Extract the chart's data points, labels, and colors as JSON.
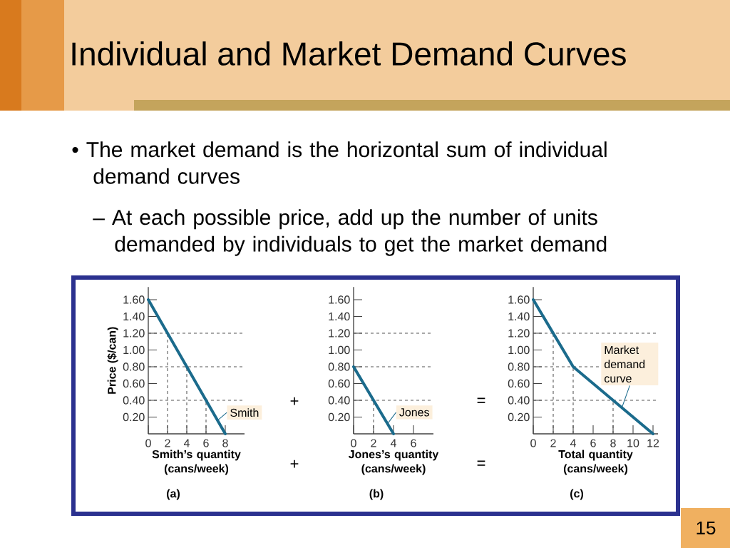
{
  "chart_data": [
    {
      "type": "line",
      "title": "Individual and Market Demand Curves",
      "xlabel": "Smith’s quantity (cans/week)",
      "ylabel": "Price ($/can)",
      "x": [
        0,
        8
      ],
      "series": [
        {
          "name": "Smith",
          "color": "#1b6b8c",
          "values": [
            1.6,
            0
          ]
        }
      ],
      "xlim": [
        0,
        10
      ],
      "ylim": [
        0,
        1.75
      ],
      "xticks": [
        0,
        2,
        4,
        6,
        8
      ],
      "yticks": [
        {
          "value": 0.2,
          "label": "0.20"
        },
        {
          "value": 0.4,
          "label": "0.40"
        },
        {
          "value": 0.6,
          "label": "0.60"
        },
        {
          "value": 0.8,
          "label": "0.80"
        },
        {
          "value": 1.0,
          "label": "1.00"
        },
        {
          "value": 1.2,
          "label": "1.20"
        },
        {
          "value": 1.4,
          "label": "1.40"
        },
        {
          "value": 1.6,
          "label": "1.60"
        }
      ],
      "ref_lines": [
        {
          "axis": "y",
          "value": 1.2,
          "color": "#555555",
          "line_style": "dashed"
        },
        {
          "axis": "y",
          "value": 0.8,
          "color": "#555555",
          "line_style": "dashed"
        },
        {
          "axis": "y",
          "value": 0.4,
          "color": "#555555",
          "line_style": "dashed"
        },
        {
          "axis": "x",
          "value": 2,
          "color": "#555555",
          "line_style": "dashed"
        },
        {
          "axis": "x",
          "value": 4,
          "color": "#555555",
          "line_style": "dashed"
        },
        {
          "axis": "x",
          "value": 6,
          "color": "#555555",
          "line_style": "dashed"
        }
      ],
      "annotations": [
        "• The market demand is the horizontal sum of individual demand curves",
        "– At each possible price, add up the number of units demanded by individuals to get the market demand",
        "(a)",
        "+",
        "+"
      ]
    },
    {
      "type": "line",
      "xlabel": "Jones’s quantity (cans/week)",
      "x": [
        0,
        4
      ],
      "series": [
        {
          "name": "Jones",
          "color": "#1b6b8c",
          "values": [
            0.8,
            0
          ]
        }
      ],
      "xlim": [
        0,
        8
      ],
      "ylim": [
        0,
        1.75
      ],
      "xticks": [
        0,
        2,
        4,
        6
      ],
      "yticks": [
        {
          "value": 0.2,
          "label": "0.20"
        },
        {
          "value": 0.4,
          "label": "0.40"
        },
        {
          "value": 0.6,
          "label": "0.60"
        },
        {
          "value": 0.8,
          "label": "0.80"
        },
        {
          "value": 1.0,
          "label": "1.00"
        },
        {
          "value": 1.2,
          "label": "1.20"
        },
        {
          "value": 1.4,
          "label": "1.40"
        },
        {
          "value": 1.6,
          "label": "1.60"
        }
      ],
      "ref_lines": [
        {
          "axis": "y",
          "value": 1.2,
          "color": "#555555",
          "line_style": "dashed"
        },
        {
          "axis": "y",
          "value": 0.8,
          "color": "#555555",
          "line_style": "dashed"
        },
        {
          "axis": "y",
          "value": 0.4,
          "color": "#555555",
          "line_style": "dashed"
        },
        {
          "axis": "x",
          "value": 2,
          "color": "#555555",
          "line_style": "dashed"
        }
      ],
      "annotations": [
        "(b)",
        "=",
        "="
      ]
    },
    {
      "type": "line",
      "xlabel": "Total quantity (cans/week)",
      "x": [
        0,
        4,
        12
      ],
      "series": [
        {
          "name": "Market demand curve",
          "color": "#1b6b8c",
          "values": [
            1.6,
            0.8,
            0
          ]
        }
      ],
      "xlim": [
        0,
        12.5
      ],
      "ylim": [
        0,
        1.75
      ],
      "xticks": [
        0,
        2,
        4,
        6,
        8,
        10,
        12
      ],
      "yticks": [
        {
          "value": 0.2,
          "label": "0.20"
        },
        {
          "value": 0.4,
          "label": "0.40"
        },
        {
          "value": 0.6,
          "label": "0.60"
        },
        {
          "value": 0.8,
          "label": "0.80"
        },
        {
          "value": 1.0,
          "label": "1.00"
        },
        {
          "value": 1.2,
          "label": "1.20"
        },
        {
          "value": 1.4,
          "label": "1.40"
        },
        {
          "value": 1.6,
          "label": "1.60"
        }
      ],
      "ref_lines": [
        {
          "axis": "y",
          "value": 1.2,
          "color": "#555555",
          "line_style": "dashed"
        },
        {
          "axis": "y",
          "value": 0.8,
          "color": "#555555",
          "line_style": "dashed"
        },
        {
          "axis": "y",
          "value": 0.4,
          "color": "#555555",
          "line_style": "dashed"
        },
        {
          "axis": "x",
          "value": 2,
          "color": "#555555",
          "line_style": "dashed"
        },
        {
          "axis": "x",
          "value": 4,
          "color": "#555555",
          "line_style": "dashed"
        },
        {
          "axis": "x",
          "value": 8,
          "color": "#555555",
          "line_style": "dashed"
        }
      ],
      "annotations": [
        "(c)",
        "15"
      ]
    }
  ]
}
